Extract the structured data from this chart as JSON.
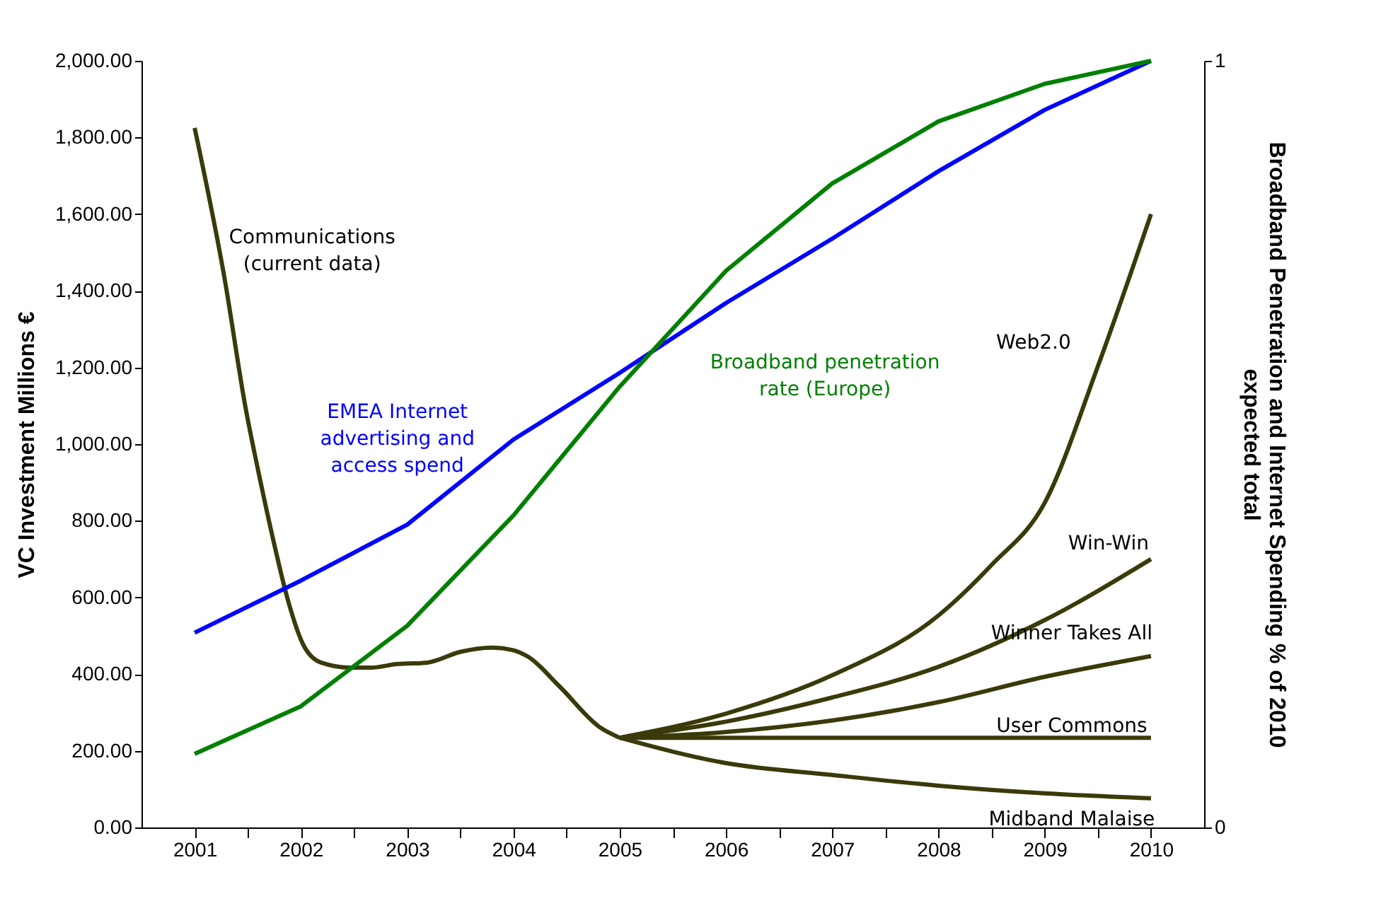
{
  "chart_data": {
    "type": "line",
    "ylabel": "VC Investment Millions €",
    "y2label": "Broadband Penetration and Internet Spending % of 2010\nexpected total",
    "xlim": [
      2000.5,
      2010.5
    ],
    "xticks": [
      2001,
      2002,
      2003,
      2004,
      2005,
      2006,
      2007,
      2008,
      2009,
      2010,
      {
        "value": 2001.5,
        "label": null
      },
      {
        "value": 2002.5,
        "label": null
      },
      {
        "value": 2003.5,
        "label": null
      },
      {
        "value": 2004.5,
        "label": null
      },
      {
        "value": 2005.5,
        "label": null
      },
      {
        "value": 2006.5,
        "label": null
      },
      {
        "value": 2007.5,
        "label": null
      },
      {
        "value": 2008.5,
        "label": null
      },
      {
        "value": 2009.5,
        "label": null
      }
    ],
    "ylim": [
      0,
      2000
    ],
    "yticks": [
      {
        "value": 0,
        "label": "0.00"
      },
      {
        "value": 200,
        "label": "200.00"
      },
      {
        "value": 400,
        "label": "400.00"
      },
      {
        "value": 600,
        "label": "600.00"
      },
      {
        "value": 800,
        "label": "800.00"
      },
      {
        "value": 1000,
        "label": "1,000.00"
      },
      {
        "value": 1200,
        "label": "1,200.00"
      },
      {
        "value": 1400,
        "label": "1,400.00"
      },
      {
        "value": 1600,
        "label": "1,600.00"
      },
      {
        "value": 1800,
        "label": "1,800.00"
      },
      {
        "value": 2000,
        "label": "2,000.00"
      }
    ],
    "y2lim": [
      0,
      1
    ],
    "y2ticks": [
      0,
      1
    ],
    "grid": false,
    "legend": false,
    "series": [
      {
        "name": "Communications\n(current data)",
        "color": "#3a3a0a",
        "x": [
          2001.0,
          2001.28,
          2001.48,
          2001.62,
          2001.75,
          2001.87,
          2002.02,
          2002.19,
          2002.46,
          2002.66,
          2002.9,
          2003.19,
          2003.5,
          2003.8,
          2003.99,
          2004.14,
          2004.43,
          2004.82,
          2005.0
        ],
        "values": [
          1825,
          1435,
          1094,
          902,
          738,
          601,
          478,
          430,
          417,
          417,
          426,
          430,
          458,
          469,
          463,
          445,
          369,
          260,
          234
        ]
      },
      {
        "name": "Web2.0",
        "color": "#3a3a0a",
        "x": [
          2005,
          2006,
          2007,
          2008,
          2008.5,
          2009,
          2009.5,
          2010
        ],
        "values": [
          234,
          297,
          397,
          553,
          685,
          847,
          1203,
          1600
        ]
      },
      {
        "name": "Win-Win",
        "color": "#3a3a0a",
        "x": [
          2005,
          2006,
          2007,
          2008,
          2009,
          2010
        ],
        "values": [
          234,
          276,
          339,
          419,
          541,
          700
        ]
      },
      {
        "name": "Winner Takes All",
        "color": "#3a3a0a",
        "x": [
          2005,
          2006,
          2007,
          2008,
          2009,
          2010
        ],
        "values": [
          234,
          249,
          279,
          327,
          393,
          447
        ]
      },
      {
        "name": "User Commons",
        "color": "#3a3a0a",
        "x": [
          2005,
          2006,
          2007,
          2008,
          2009,
          2010
        ],
        "values": [
          234,
          234,
          234,
          234,
          234,
          234
        ]
      },
      {
        "name": "Midband Malaise",
        "color": "#3a3a0a",
        "x": [
          2005,
          2006,
          2007,
          2008,
          2009,
          2010
        ],
        "values": [
          234,
          168,
          137,
          109,
          89,
          76
        ]
      },
      {
        "name": "EMEA Internet\nadvertising and\naccess spend",
        "color": "#0000ff",
        "axis": "y2",
        "x": [
          2001,
          2002,
          2003,
          2004,
          2005,
          2006,
          2007,
          2008,
          2009,
          2010
        ],
        "values": [
          0.254,
          0.322,
          0.395,
          0.506,
          0.593,
          0.684,
          0.768,
          0.856,
          0.936,
          1.0
        ]
      },
      {
        "name": "Broadband penetration\nrate (Europe)",
        "color": "#008000",
        "axis": "y2",
        "x": [
          2001,
          2002,
          2003,
          2004,
          2005,
          2006,
          2007,
          2008,
          2009,
          2010
        ],
        "values": [
          0.096,
          0.158,
          0.263,
          0.407,
          0.575,
          0.726,
          0.84,
          0.921,
          0.97,
          1.0
        ]
      }
    ]
  }
}
